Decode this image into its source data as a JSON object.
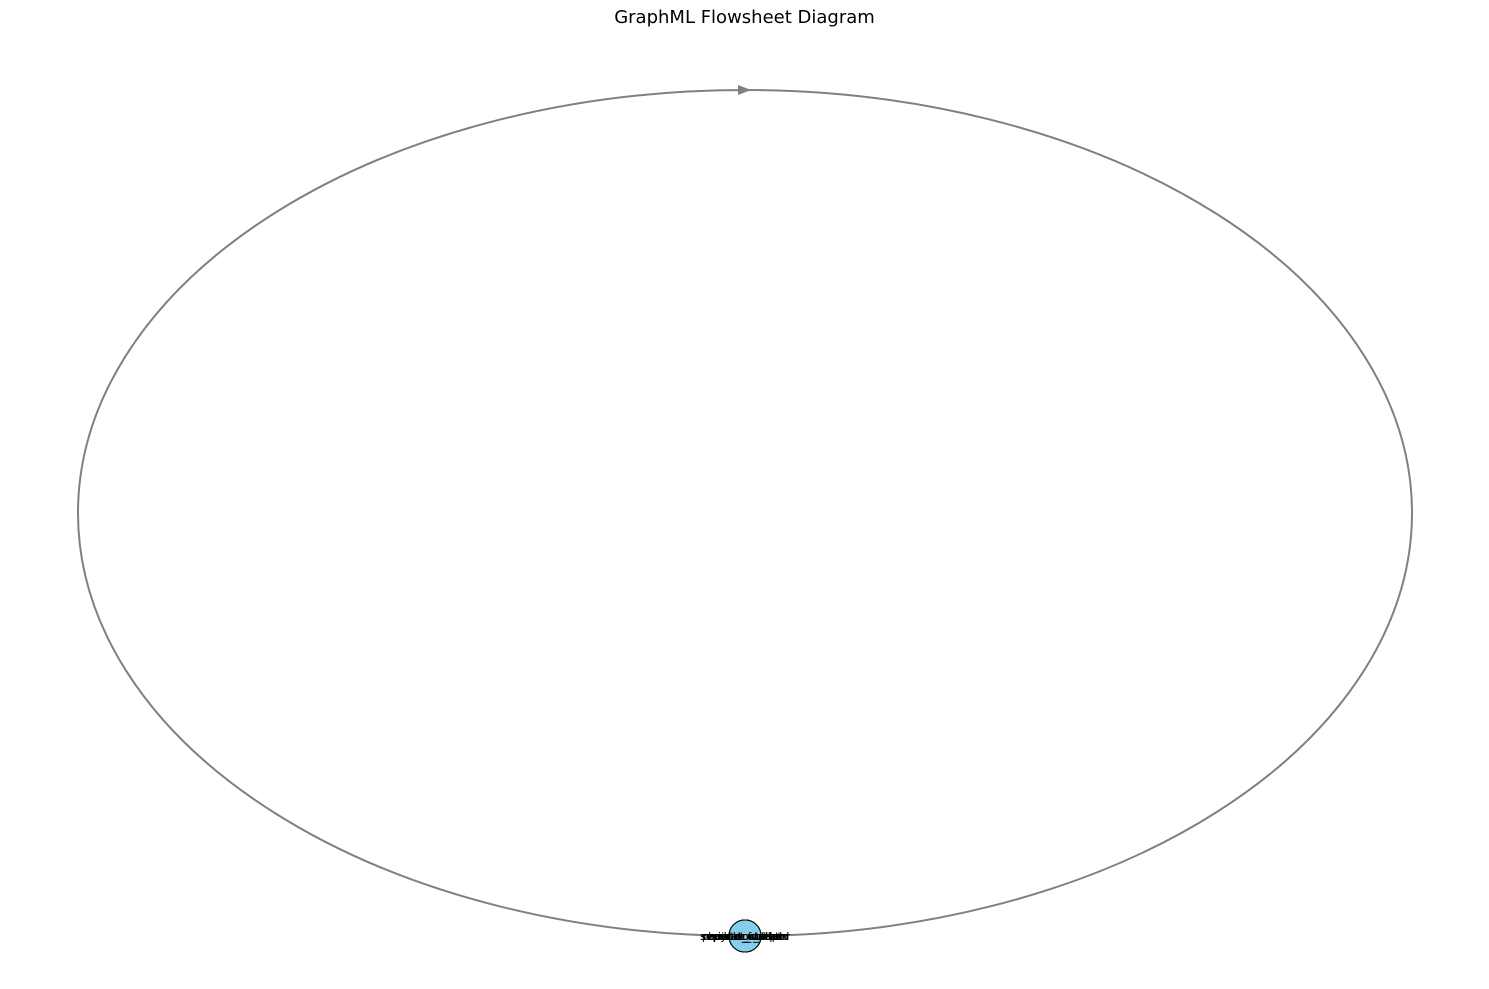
{
  "figure": {
    "title": "GraphML Flowsheet Diagram"
  },
  "diagram": {
    "nodes": [
      {
        "label": "inlet_feed"
      },
      {
        "label": "mixer_outlet"
      },
      {
        "label": "heater_outlet"
      },
      {
        "label": "reactor_outlet"
      },
      {
        "label": "separator_vapor"
      },
      {
        "label": "separator_liquid"
      },
      {
        "label": "recycle_stream"
      },
      {
        "label": "product_stream"
      }
    ],
    "edges": [
      {
        "from": "inlet_feed",
        "to": "inlet_feed",
        "type": "self-loop"
      }
    ],
    "colors": {
      "node_fill": "#87ceeb",
      "node_stroke": "#000000",
      "edge": "#808080",
      "title": "#000000"
    }
  }
}
